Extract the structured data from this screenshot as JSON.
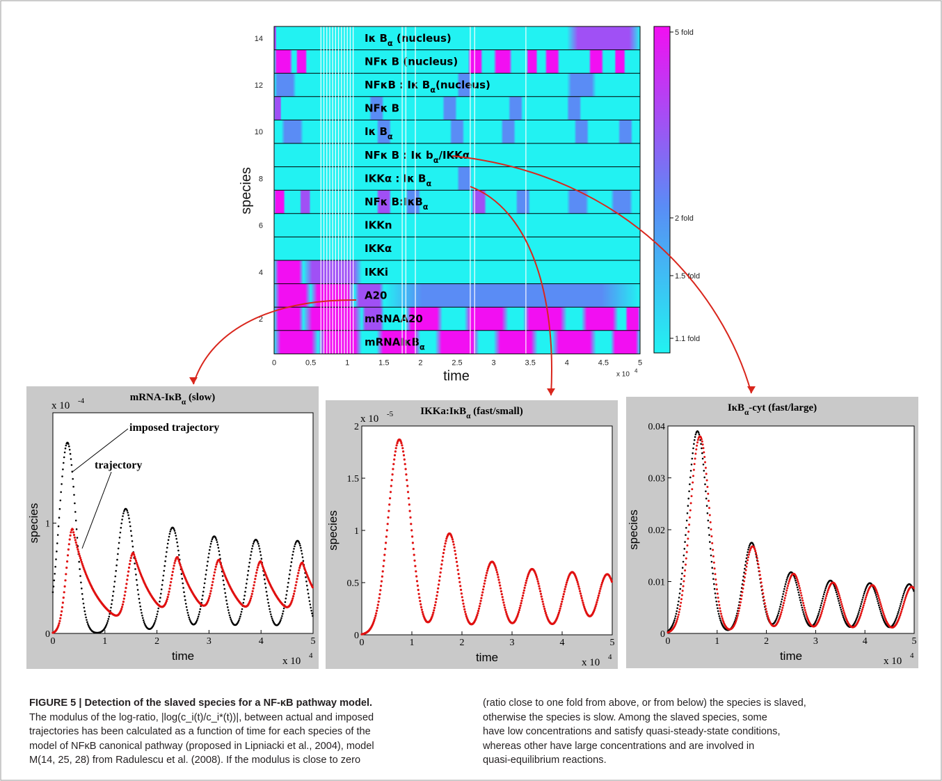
{
  "colors": {
    "cyan": "#22f2f2",
    "magenta": "#f20ff2",
    "mid": "#5a8cf5",
    "red": "#e01010",
    "black": "#000000",
    "panel_bg": "#c9c9c9",
    "arrow": "#d9261c"
  },
  "heatmap": {
    "ylabel": "species",
    "xlabel": "time",
    "x_multiplier": "x 10",
    "x_multiplier_exp": "4",
    "y_ticks": [
      {
        "v": 2,
        "label": "2"
      },
      {
        "v": 4,
        "label": "4"
      },
      {
        "v": 6,
        "label": "6"
      },
      {
        "v": 8,
        "label": "8"
      },
      {
        "v": 10,
        "label": "10"
      },
      {
        "v": 12,
        "label": "12"
      },
      {
        "v": 14,
        "label": "14"
      }
    ],
    "x_ticks": [
      "0",
      "0.5",
      "1",
      "1.5",
      "2",
      "2.5",
      "3",
      "3.5",
      "4",
      "4.5",
      "5"
    ],
    "rows": [
      {
        "name": "Iκ B_α (nucleus)",
        "mag": [
          [
            0.0,
            0.03,
            0.7
          ],
          [
            4.0,
            5.0,
            0.6
          ]
        ]
      },
      {
        "name": "NFκ B (nucleus)",
        "mag": [
          [
            0.0,
            0.25,
            1
          ],
          [
            0.3,
            0.45,
            1
          ],
          [
            2.65,
            2.85,
            1
          ],
          [
            3.0,
            3.25,
            1
          ],
          [
            3.45,
            3.6,
            1
          ],
          [
            3.7,
            3.9,
            1
          ],
          [
            4.3,
            4.5,
            1
          ],
          [
            4.65,
            4.8,
            1
          ]
        ]
      },
      {
        "name": "NFκB : Iκ B_α(nucleus)",
        "mag": [
          [
            0.0,
            0.3,
            0.35
          ],
          [
            2.5,
            2.7,
            0.3
          ],
          [
            4.0,
            4.4,
            0.3
          ]
        ]
      },
      {
        "name": "NFκ B",
        "mag": [
          [
            0.0,
            0.1,
            0.5
          ],
          [
            1.3,
            1.5,
            0.4
          ],
          [
            2.3,
            2.5,
            0.4
          ],
          [
            3.2,
            3.4,
            0.4
          ],
          [
            4.0,
            4.2,
            0.4
          ]
        ]
      },
      {
        "name": "Iκ B_α",
        "mag": [
          [
            0.1,
            0.4,
            0.4
          ],
          [
            1.4,
            1.6,
            0.4
          ],
          [
            2.4,
            2.6,
            0.4
          ],
          [
            3.1,
            3.3,
            0.4
          ],
          [
            4.1,
            4.3,
            0.4
          ],
          [
            4.7,
            4.9,
            0.4
          ]
        ]
      },
      {
        "name": "NFκ B : Iκ b_α/IKKα",
        "mag": []
      },
      {
        "name": "IKKα : Iκ B_α",
        "mag": [
          [
            2.5,
            2.7,
            0.15
          ]
        ]
      },
      {
        "name": "NFκ B:IκB_α",
        "mag": [
          [
            0.0,
            0.15,
            1
          ],
          [
            0.35,
            0.5,
            0.6
          ],
          [
            1.4,
            1.6,
            0.7
          ],
          [
            1.8,
            2.0,
            0.4
          ],
          [
            2.7,
            2.9,
            0.5
          ],
          [
            3.3,
            3.5,
            0.4
          ],
          [
            4.0,
            4.3,
            0.4
          ],
          [
            4.6,
            4.9,
            0.4
          ]
        ]
      },
      {
        "name": "IKKn",
        "mag": []
      },
      {
        "name": "IKKα",
        "mag": []
      },
      {
        "name": "IKKi",
        "mag": [
          [
            0.0,
            0.4,
            1
          ],
          [
            0.4,
            1.2,
            0.6
          ]
        ]
      },
      {
        "name": "A20",
        "mag": [
          [
            0.0,
            0.5,
            1
          ],
          [
            0.5,
            1.1,
            0.85
          ],
          [
            1.1,
            1.5,
            0.5
          ],
          [
            1.5,
            5.0,
            0.4
          ]
        ]
      },
      {
        "name": "mRNAA20",
        "mag": [
          [
            0.0,
            0.4,
            1
          ],
          [
            0.4,
            1.2,
            0.9
          ],
          [
            1.2,
            1.5,
            0.7
          ],
          [
            1.8,
            2.3,
            0.8
          ],
          [
            2.6,
            3.2,
            0.8
          ],
          [
            3.4,
            4.0,
            0.8
          ],
          [
            4.2,
            4.7,
            0.8
          ],
          [
            4.8,
            5.0,
            0.8
          ]
        ]
      },
      {
        "name": "mRNAIκB_α",
        "mag": [
          [
            0.0,
            0.6,
            1
          ],
          [
            0.6,
            1.2,
            0.9
          ],
          [
            1.4,
            2.0,
            0.9
          ],
          [
            2.2,
            2.8,
            0.9
          ],
          [
            3.0,
            3.6,
            0.9
          ],
          [
            3.8,
            4.4,
            0.9
          ],
          [
            4.6,
            5.0,
            0.9
          ]
        ]
      }
    ],
    "colorbar": [
      "5 fold",
      "2 fold",
      "1.5 fold",
      "1.1 fold"
    ]
  },
  "panels": [
    {
      "title": "mRNA-IκB_α (slow)",
      "ylabel": "species",
      "xlabel": "time",
      "scale": "x 10",
      "scale_exp": "-4",
      "x_multiplier": "x 10",
      "x_multiplier_exp": "4",
      "ylim": [
        0,
        2
      ],
      "y_ticks": [
        [
          0,
          "0"
        ],
        [
          1,
          "1"
        ]
      ],
      "annotations": [
        "imposed trajectory",
        "trajectory"
      ]
    },
    {
      "title": "IKKa:IκB_α (fast/small)",
      "ylabel": "species",
      "xlabel": "time",
      "scale": "x 10",
      "scale_exp": "-5",
      "x_multiplier": "x 10",
      "x_multiplier_exp": "4",
      "ylim": [
        0,
        2
      ],
      "y_ticks": [
        [
          0,
          "0"
        ],
        [
          0.5,
          "0.5"
        ],
        [
          1,
          "1"
        ],
        [
          1.5,
          "1.5"
        ],
        [
          2,
          "2"
        ]
      ]
    },
    {
      "title": "IκB_α-cyt (fast/large)",
      "ylabel": "species",
      "xlabel": "time",
      "x_multiplier": "x 10",
      "x_multiplier_exp": "4",
      "ylim": [
        0,
        0.04
      ],
      "y_ticks": [
        [
          0,
          "0"
        ],
        [
          0.01,
          "0.01"
        ],
        [
          0.02,
          "0.02"
        ],
        [
          0.03,
          "0.03"
        ],
        [
          0.04,
          "0.04"
        ]
      ]
    }
  ],
  "chart_data": [
    {
      "type": "heatmap",
      "xlabel": "time",
      "ylabel": "species",
      "xlim": [
        0,
        5
      ],
      "x_scale": "x 10^4",
      "ylim": [
        1,
        14
      ],
      "rows": [
        "Iκ B_α (nucleus)",
        "NFκ B (nucleus)",
        "NFκB : Iκ B_α(nucleus)",
        "NFκ B",
        "Iκ B_α",
        "NFκ B : Iκ b_α/IKKα",
        "IKKα : Iκ B_α",
        "NFκ B:IκB_α",
        "IKKn",
        "IKKα",
        "IKKi",
        "A20",
        "mRNAA20",
        "mRNAIκB_α"
      ],
      "colorbar_labels": [
        "5 fold",
        "2 fold",
        "1.5 fold",
        "1.1 fold"
      ]
    },
    {
      "type": "scatter",
      "title": "mRNA-IκB_α (slow)",
      "xlabel": "time",
      "ylabel": "species",
      "xlim": [
        0,
        5
      ],
      "ylim": [
        0,
        2
      ],
      "series": [
        {
          "name": "imposed trajectory",
          "color": "#000000",
          "peaks": [
            [
              0.28,
              1.73
            ],
            [
              1.4,
              1.13
            ],
            [
              2.3,
              0.96
            ],
            [
              3.1,
              0.88
            ],
            [
              3.9,
              0.85
            ],
            [
              4.7,
              0.84
            ]
          ]
        },
        {
          "name": "trajectory",
          "color": "#e01010",
          "peaks": [
            [
              0.38,
              0.95
            ],
            [
              1.55,
              0.66
            ],
            [
              2.4,
              0.58
            ],
            [
              3.2,
              0.55
            ],
            [
              4.0,
              0.54
            ],
            [
              4.8,
              0.53
            ]
          ]
        }
      ]
    },
    {
      "type": "scatter",
      "title": "IKKa:IκB_α (fast/small)",
      "xlabel": "time",
      "ylabel": "species",
      "xlim": [
        0,
        5
      ],
      "ylim": [
        0,
        2
      ],
      "series": [
        {
          "name": "",
          "color": "#e01010",
          "peaks": [
            [
              0.75,
              1.87
            ],
            [
              1.75,
              0.97
            ],
            [
              2.6,
              0.7
            ],
            [
              3.4,
              0.63
            ],
            [
              4.2,
              0.6
            ],
            [
              4.9,
              0.58
            ]
          ]
        }
      ]
    },
    {
      "type": "scatter",
      "title": "IκB_α-cyt (fast/large)",
      "xlabel": "time",
      "ylabel": "species",
      "xlim": [
        0,
        5
      ],
      "ylim": [
        0,
        0.04
      ],
      "series": [
        {
          "name": "",
          "color": "#000000",
          "peaks": [
            [
              0.6,
              0.039
            ],
            [
              1.7,
              0.0175
            ],
            [
              2.5,
              0.0118
            ],
            [
              3.3,
              0.0102
            ],
            [
              4.1,
              0.0097
            ],
            [
              4.9,
              0.0095
            ]
          ]
        },
        {
          "name": "",
          "color": "#e01010",
          "peaks": [
            [
              0.65,
              0.038
            ],
            [
              1.72,
              0.0168
            ],
            [
              2.55,
              0.0115
            ],
            [
              3.35,
              0.0098
            ],
            [
              4.15,
              0.0093
            ],
            [
              4.95,
              0.009
            ]
          ]
        }
      ]
    }
  ],
  "caption": {
    "title": "FIGURE 5 | Detection of the slaved species for a NF-κB pathway model.",
    "left": [
      "The modulus of the log-ratio, |log(c_i(t)/c_i*(t))|, between actual and imposed",
      "trajectories has been calculated as a function of time for each species of the",
      "model of NFκB canonical pathway (proposed in Lipniacki et al., 2004), model",
      "M(14, 25, 28) from Radulescu et al. (2008). If the modulus is close to zero"
    ],
    "right": [
      "(ratio close to one fold from above, or from below) the species is slaved,",
      "otherwise the species is slow. Among the slaved species, some",
      "have low concentrations and satisfy quasi-steady-state conditions,",
      "whereas other have large concentrations and are involved in",
      "quasi-equilibrium reactions."
    ]
  }
}
